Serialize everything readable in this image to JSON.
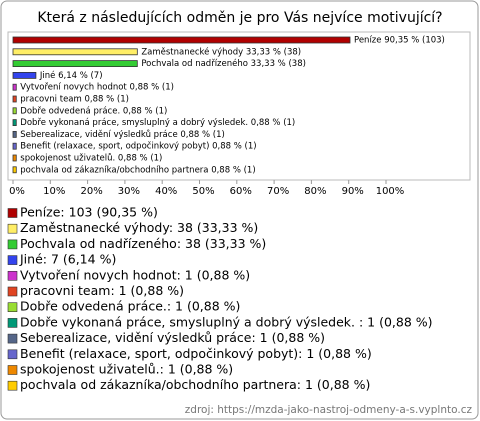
{
  "chart_data": {
    "type": "bar",
    "orientation": "horizontal",
    "title": "Která z následujících odměn je pro Vás nejvíce motivující?",
    "values": [
      90.35,
      33.33,
      33.33,
      6.14,
      0.88,
      0.88,
      0.88,
      0.88,
      0.88,
      0.88,
      0.88,
      0.88
    ],
    "value_labels": [
      "Peníze 90,35 % (103)",
      "Zaměstnanecké výhody 33,33 % (38)",
      "Pochvala od nadřízeného 33,33 % (38)",
      "Jiné 6,14 % (7)",
      "Vytvoření novych hodnot 0,88 % (1)",
      "pracovni team 0,88 % (1)",
      "Dobře odvedená práce. 0,88 % (1)",
      "Dobře vykonaná práce, smysluplný a dobrý výsledek.  0,88 % (1)",
      "Seberealizace, vidění výsledků práce 0,88 % (1)",
      "Benefit (relaxace, sport, odpočinkový pobyt) 0,88 % (1)",
      "spokojenost uživatelů. 0,88 % (1)",
      "pochvala od zákazníka/obchodního partnera 0,88 % (1)"
    ],
    "legend": [
      "Peníze: 103 (90,35 %)",
      "Zaměstnanecké výhody: 38 (33,33 %)",
      "Pochvala od nadřízeného: 38 (33,33 %)",
      "Jiné: 7 (6,14 %)",
      "Vytvoření novych hodnot: 1 (0,88 %)",
      "pracovni team: 1 (0,88 %)",
      "Dobře odvedená práce.: 1 (0,88 %)",
      "Dobře vykonaná práce, smysluplný a dobrý výsledek. : 1 (0,88 %)",
      "Seberealizace, vidění výsledků práce: 1 (0,88 %)",
      "Benefit (relaxace, sport, odpočinkový pobyt): 1 (0,88 %)",
      "spokojenost uživatelů.: 1 (0,88 %)",
      "pochvala od zákazníka/obchodního partnera: 1 (0,88 %)"
    ],
    "colors": [
      "#b00000",
      "#ffee66",
      "#33cc33",
      "#3344ee",
      "#cc33cc",
      "#e04422",
      "#99dd33",
      "#009977",
      "#556688",
      "#6666cc",
      "#ee8800",
      "#ffcc00"
    ],
    "xlim": [
      0,
      100
    ],
    "xticks": [
      {
        "value": 0,
        "label": "0%"
      },
      {
        "value": 10,
        "label": "10%"
      },
      {
        "value": 20,
        "label": "20%"
      },
      {
        "value": 30,
        "label": "30%"
      },
      {
        "value": 40,
        "label": "40%"
      },
      {
        "value": 50,
        "label": "50%"
      },
      {
        "value": 60,
        "label": "60%"
      },
      {
        "value": 70,
        "label": "70%"
      },
      {
        "value": 80,
        "label": "80%"
      },
      {
        "value": 90,
        "label": "90%"
      },
      {
        "value": 100,
        "label": "100%"
      }
    ],
    "source": "zdroj: https://mzda-jako-nastroj-odmeny-a-s.vyplnto.cz"
  }
}
